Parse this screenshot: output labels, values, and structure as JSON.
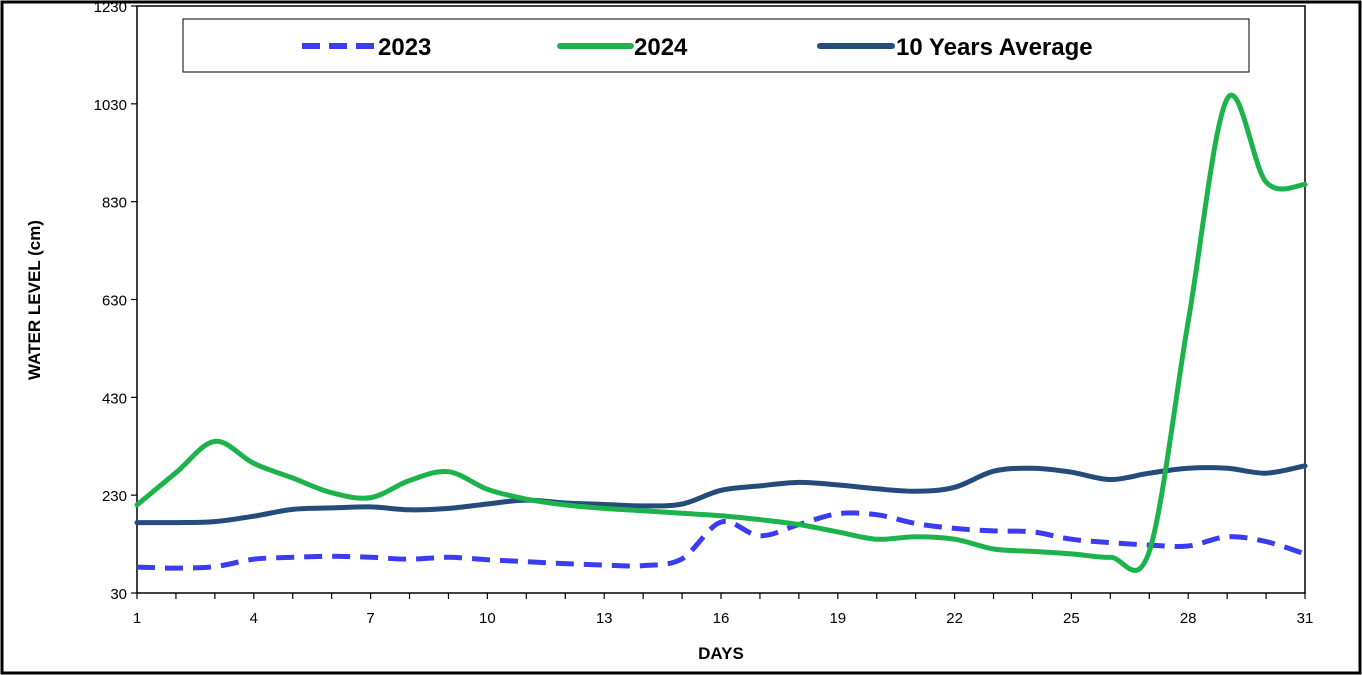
{
  "chart_data": {
    "type": "line",
    "title": "",
    "xlabel": "DAYS",
    "ylabel": "WATER LEVEL (cm)",
    "xlim": [
      1,
      31
    ],
    "ylim": [
      30,
      1230
    ],
    "x_ticks": [
      1,
      4,
      7,
      10,
      13,
      16,
      19,
      22,
      25,
      28,
      31
    ],
    "y_ticks": [
      30,
      230,
      430,
      630,
      830,
      1030,
      1230
    ],
    "grid": false,
    "legend_position": "top-center",
    "series": [
      {
        "name": "2023",
        "color": "#3b3bf0",
        "style": "dashed",
        "x": [
          1,
          2,
          3,
          4,
          5,
          6,
          7,
          8,
          9,
          10,
          11,
          12,
          13,
          14,
          15,
          16,
          17,
          18,
          19,
          20,
          21,
          22,
          23,
          24,
          25,
          26,
          27,
          28,
          29,
          30,
          31
        ],
        "y": [
          83,
          81,
          84,
          99,
          103,
          105,
          103,
          99,
          103,
          98,
          94,
          90,
          87,
          86,
          100,
          175,
          147,
          170,
          192,
          190,
          172,
          162,
          157,
          155,
          140,
          133,
          128,
          126,
          145,
          135,
          110
        ]
      },
      {
        "name": "2024",
        "color": "#1db34c",
        "style": "solid",
        "x": [
          1,
          2,
          3,
          4,
          5,
          6,
          7,
          8,
          9,
          10,
          11,
          12,
          13,
          14,
          15,
          16,
          17,
          18,
          19,
          20,
          21,
          22,
          23,
          24,
          25,
          26,
          27,
          28,
          29,
          30,
          31
        ],
        "y": [
          210,
          276,
          340,
          295,
          265,
          235,
          225,
          260,
          278,
          242,
          222,
          210,
          203,
          198,
          193,
          188,
          180,
          170,
          155,
          140,
          145,
          140,
          120,
          115,
          110,
          103,
          115,
          585,
          1040,
          870,
          865
        ]
      },
      {
        "name": "10 Years Average",
        "color": "#234c7b",
        "style": "solid",
        "x": [
          1,
          2,
          3,
          4,
          5,
          6,
          7,
          8,
          9,
          10,
          11,
          12,
          13,
          14,
          15,
          16,
          17,
          18,
          19,
          20,
          21,
          22,
          23,
          24,
          25,
          26,
          27,
          28,
          29,
          30,
          31
        ],
        "y": [
          174,
          174,
          176,
          187,
          201,
          204,
          206,
          200,
          203,
          212,
          220,
          214,
          211,
          208,
          212,
          240,
          249,
          256,
          251,
          243,
          238,
          246,
          279,
          285,
          277,
          262,
          275,
          285,
          285,
          275,
          290
        ]
      }
    ]
  }
}
